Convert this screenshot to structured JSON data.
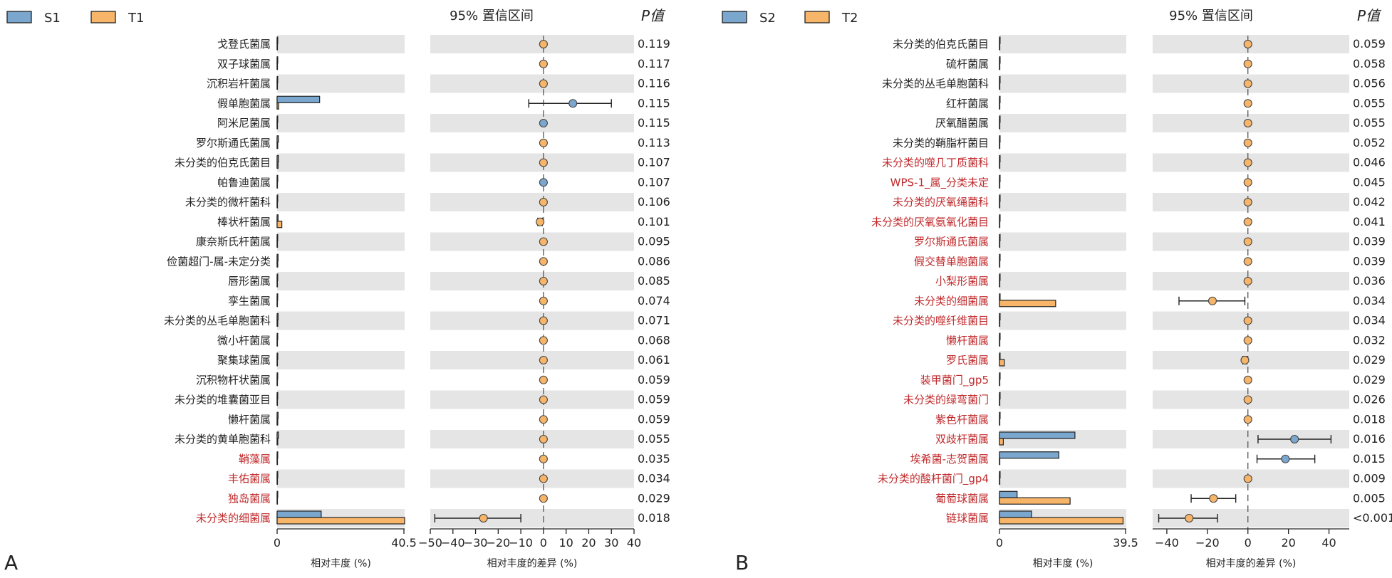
{
  "chart_data": [
    {
      "type": "bar",
      "panel_label": "A",
      "legend": [
        {
          "name": "S1",
          "color": "#7ba7cf"
        },
        {
          "name": "T1",
          "color": "#f7b56a"
        }
      ],
      "ci_title": "95% 置信区间",
      "p_title": "P值",
      "bar_xlabel": "相对丰度 (%)",
      "diff_xlabel": "相对丰度的差异 (%)",
      "bar_xlim": [
        0,
        40.5
      ],
      "bar_ticks": [
        "0",
        "40.5"
      ],
      "diff_xlim": [
        -50,
        40
      ],
      "diff_ticks": [
        -50,
        -40,
        -30,
        -20,
        -10,
        0,
        10,
        20,
        30,
        40
      ],
      "categories": [
        "戈登氏菌属",
        "双子球菌属",
        "沉积岩杆菌属",
        "假单胞菌属",
        "阿米尼菌属",
        "罗尔斯通氏菌属",
        "未分类的伯克氏菌目",
        "帕鲁迪菌属",
        "未分类的微杆菌科",
        "棒状杆菌属",
        "康奈斯氏杆菌属",
        "俭菌超门-属-未定分类",
        "唇形菌属",
        "孪生菌属",
        "未分类的丛毛单胞菌科",
        "微小杆菌属",
        "聚集球菌属",
        "沉积物杆状菌属",
        "未分类的堆囊菌亚目",
        "懒杆菌属",
        "未分类的黄单胞菌科",
        "鞘藻属",
        "丰佑菌属",
        "独岛菌属",
        "未分类的细菌属"
      ],
      "highlight": [
        false,
        false,
        false,
        false,
        false,
        false,
        false,
        false,
        false,
        false,
        false,
        false,
        false,
        false,
        false,
        false,
        false,
        false,
        false,
        false,
        false,
        true,
        true,
        true,
        true
      ],
      "series": [
        {
          "name": "S1",
          "values": [
            0.2,
            0.2,
            0.2,
            13.5,
            0.2,
            0.4,
            0.4,
            0.2,
            0.2,
            0.3,
            0.2,
            0.3,
            0.2,
            0.2,
            0.3,
            0.2,
            0.2,
            0.2,
            0.2,
            0.3,
            0.4,
            0.2,
            0.2,
            0.2,
            14
          ]
        },
        {
          "name": "T1",
          "values": [
            0.1,
            0.1,
            0.1,
            0.5,
            0.1,
            0.2,
            0.3,
            0.1,
            0.1,
            1.5,
            0.1,
            0.2,
            0.1,
            0.1,
            0.2,
            0.1,
            0.1,
            0.1,
            0.1,
            0.2,
            0.2,
            0.1,
            0.1,
            0.1,
            40.5
          ]
        }
      ],
      "diff": [
        {
          "mean": 0,
          "low": 0,
          "high": 0,
          "group": "T1"
        },
        {
          "mean": 0,
          "low": 0,
          "high": 0,
          "group": "T1"
        },
        {
          "mean": 0,
          "low": 0,
          "high": 0,
          "group": "T1"
        },
        {
          "mean": 13,
          "low": -6.5,
          "high": 30,
          "group": "S1"
        },
        {
          "mean": 0,
          "low": 0,
          "high": 0,
          "group": "S1"
        },
        {
          "mean": 0,
          "low": 0,
          "high": 0,
          "group": "T1"
        },
        {
          "mean": 0,
          "low": 0,
          "high": 0,
          "group": "T1"
        },
        {
          "mean": 0,
          "low": 0,
          "high": 0,
          "group": "S1"
        },
        {
          "mean": 0,
          "low": 0,
          "high": 0,
          "group": "T1"
        },
        {
          "mean": -1.5,
          "low": -2.5,
          "high": -0.5,
          "group": "T1"
        },
        {
          "mean": 0,
          "low": 0,
          "high": 0,
          "group": "T1"
        },
        {
          "mean": 0,
          "low": 0,
          "high": 0,
          "group": "T1"
        },
        {
          "mean": 0,
          "low": 0,
          "high": 0,
          "group": "T1"
        },
        {
          "mean": 0,
          "low": 0,
          "high": 0,
          "group": "T1"
        },
        {
          "mean": 0,
          "low": 0,
          "high": 0,
          "group": "T1"
        },
        {
          "mean": 0,
          "low": 0,
          "high": 0,
          "group": "T1"
        },
        {
          "mean": 0,
          "low": 0,
          "high": 0,
          "group": "T1"
        },
        {
          "mean": 0,
          "low": 0,
          "high": 0,
          "group": "T1"
        },
        {
          "mean": 0,
          "low": 0,
          "high": 0,
          "group": "T1"
        },
        {
          "mean": 0,
          "low": 0,
          "high": 0,
          "group": "T1"
        },
        {
          "mean": 0,
          "low": 0,
          "high": 0,
          "group": "T1"
        },
        {
          "mean": 0,
          "low": 0,
          "high": 0,
          "group": "T1"
        },
        {
          "mean": 0,
          "low": 0,
          "high": 0,
          "group": "T1"
        },
        {
          "mean": 0,
          "low": 0,
          "high": 0,
          "group": "T1"
        },
        {
          "mean": -26.5,
          "low": -48,
          "high": -10,
          "group": "T1"
        }
      ],
      "p_values": [
        "0.119",
        "0.117",
        "0.116",
        "0.115",
        "0.115",
        "0.113",
        "0.107",
        "0.107",
        "0.106",
        "0.101",
        "0.095",
        "0.086",
        "0.085",
        "0.074",
        "0.071",
        "0.068",
        "0.061",
        "0.059",
        "0.059",
        "0.059",
        "0.055",
        "0.035",
        "0.034",
        "0.029",
        "0.018"
      ]
    },
    {
      "type": "bar",
      "panel_label": "B",
      "legend": [
        {
          "name": "S2",
          "color": "#7ba7cf"
        },
        {
          "name": "T2",
          "color": "#f7b56a"
        }
      ],
      "ci_title": "95% 置信区间",
      "p_title": "P值",
      "bar_xlabel": "相对丰度 (%)",
      "diff_xlabel": "相对丰度的差异 (%)",
      "bar_xlim": [
        0,
        39.5
      ],
      "bar_ticks": [
        "0",
        "39.5"
      ],
      "diff_xlim": [
        -47,
        50
      ],
      "diff_ticks": [
        -40,
        -20,
        0,
        20,
        40
      ],
      "categories": [
        "未分类的伯克氏菌目",
        "硫杆菌属",
        "未分类的丛毛单胞菌科",
        "红杆菌属",
        "厌氧醋菌属",
        "未分类的鞘脂杆菌目",
        "未分类的噬几丁质菌科",
        "WPS-1_属_分类未定",
        "未分类的厌氧绳菌科",
        "未分类的厌氧氨氧化菌目",
        "罗尔斯通氏菌属",
        "假交替单胞菌属",
        "小梨形菌属",
        "未分类的细菌属",
        "未分类的噬纤维菌目",
        "懒杆菌属",
        "罗氏菌属",
        "装甲菌门_gp5",
        "未分类的绿弯菌门",
        "紫色杆菌属",
        "双歧杆菌属",
        "埃希菌-志贺菌属",
        "未分类的酸杆菌门_gp4",
        "葡萄球菌属",
        "链球菌属"
      ],
      "highlight": [
        false,
        false,
        false,
        false,
        false,
        false,
        true,
        true,
        true,
        true,
        true,
        true,
        true,
        true,
        true,
        true,
        true,
        true,
        true,
        true,
        true,
        true,
        true,
        true,
        true
      ],
      "series": [
        {
          "name": "S2",
          "values": [
            0.2,
            0.2,
            0.2,
            0.2,
            0.2,
            0.2,
            0.2,
            0.2,
            0.2,
            0.2,
            0.2,
            0.2,
            0.2,
            0.2,
            0.2,
            0.2,
            0.2,
            0.2,
            0.2,
            0.2,
            23.5,
            18.5,
            0.2,
            5.5,
            10
          ]
        },
        {
          "name": "T2",
          "values": [
            0.1,
            0.1,
            0.1,
            0.1,
            0.1,
            0.1,
            0.1,
            0.1,
            0.1,
            0.1,
            0.1,
            0.1,
            0.1,
            17.5,
            0.1,
            0.1,
            1.5,
            0.1,
            0.1,
            0.1,
            1.2,
            0.1,
            0.1,
            22,
            38.5
          ]
        }
      ],
      "diff": [
        {
          "mean": 0,
          "low": 0,
          "high": 0,
          "group": "T2"
        },
        {
          "mean": 0,
          "low": 0,
          "high": 0,
          "group": "T2"
        },
        {
          "mean": 0,
          "low": 0,
          "high": 0,
          "group": "T2"
        },
        {
          "mean": 0,
          "low": 0,
          "high": 0,
          "group": "T2"
        },
        {
          "mean": 0,
          "low": 0,
          "high": 0,
          "group": "T2"
        },
        {
          "mean": 0,
          "low": 0,
          "high": 0,
          "group": "T2"
        },
        {
          "mean": 0,
          "low": 0,
          "high": 0,
          "group": "T2"
        },
        {
          "mean": 0,
          "low": 0,
          "high": 0,
          "group": "T2"
        },
        {
          "mean": 0,
          "low": 0,
          "high": 0,
          "group": "T2"
        },
        {
          "mean": 0,
          "low": 0,
          "high": 0,
          "group": "T2"
        },
        {
          "mean": 0,
          "low": 0,
          "high": 0,
          "group": "T2"
        },
        {
          "mean": 0,
          "low": 0,
          "high": 0,
          "group": "T2"
        },
        {
          "mean": 0,
          "low": 0,
          "high": 0,
          "group": "T2"
        },
        {
          "mean": -17.5,
          "low": -34,
          "high": -1.5,
          "group": "T2"
        },
        {
          "mean": 0,
          "low": 0,
          "high": 0,
          "group": "T2"
        },
        {
          "mean": 0,
          "low": 0,
          "high": 0,
          "group": "T2"
        },
        {
          "mean": -1.5,
          "low": -2.5,
          "high": -0.5,
          "group": "T2"
        },
        {
          "mean": 0,
          "low": 0,
          "high": 0,
          "group": "T2"
        },
        {
          "mean": 0,
          "low": 0,
          "high": 0,
          "group": "T2"
        },
        {
          "mean": 0,
          "low": 0,
          "high": 0,
          "group": "T2"
        },
        {
          "mean": 23,
          "low": 5,
          "high": 41,
          "group": "S2"
        },
        {
          "mean": 18.5,
          "low": 4.5,
          "high": 33,
          "group": "S2"
        },
        {
          "mean": 0,
          "low": 0,
          "high": 0,
          "group": "T2"
        },
        {
          "mean": -17,
          "low": -28,
          "high": -6,
          "group": "T2"
        },
        {
          "mean": -29,
          "low": -44,
          "high": -15,
          "group": "T2"
        }
      ],
      "p_values": [
        "0.059",
        "0.058",
        "0.056",
        "0.055",
        "0.055",
        "0.052",
        "0.046",
        "0.045",
        "0.042",
        "0.041",
        "0.039",
        "0.039",
        "0.036",
        "0.034",
        "0.034",
        "0.032",
        "0.029",
        "0.029",
        "0.026",
        "0.018",
        "0.016",
        "0.015",
        "0.009",
        "0.005",
        "<0.001"
      ]
    }
  ]
}
